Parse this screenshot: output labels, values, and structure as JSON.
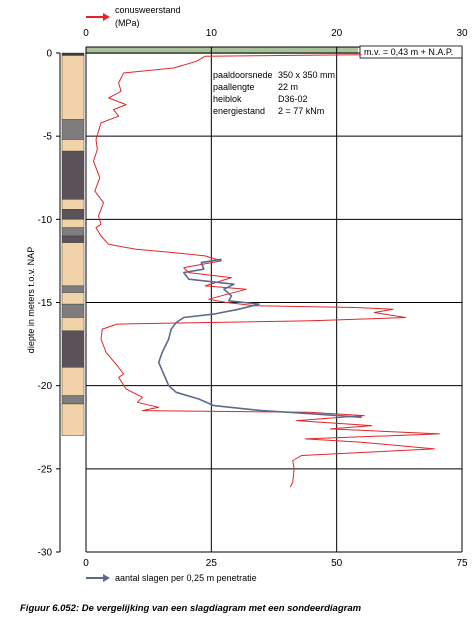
{
  "caption": "Figuur 6.052: De vergelijking van een slagdiagram met een sondeerdiagram",
  "chart_data": {
    "type": "line",
    "top_axis": {
      "label_line1": "conusweerstand",
      "label_line2": "(MPa)",
      "ticks": [
        0,
        10,
        20,
        30
      ],
      "range": [
        0,
        30
      ]
    },
    "bottom_axis": {
      "label": "aantal slagen per 0,25 m penetratie",
      "ticks": [
        0,
        25,
        50,
        75
      ],
      "range": [
        0,
        75
      ]
    },
    "y_axis": {
      "label": "diepte in meters t.o.v. NAP",
      "ticks": [
        0,
        -5,
        -10,
        -15,
        -20,
        -25,
        -30
      ],
      "range": [
        -30,
        0
      ]
    },
    "ground_level_label": "m.v. = 0,43 m + N.A.P.",
    "info_table": [
      {
        "key": "paaldoorsnede",
        "value": "350 x 350 mm"
      },
      {
        "key": "paallengte",
        "value": "22 m"
      },
      {
        "key": "heiblok",
        "value": "D36-02"
      },
      {
        "key": "energiestand",
        "value": "2 = 77 kNm"
      }
    ],
    "series": [
      {
        "axis": "top",
        "color": "#e0262b",
        "points": [
          [
            22,
            0.1
          ],
          [
            9.5,
            0.2
          ],
          [
            8.8,
            0.5
          ],
          [
            7,
            0.9
          ],
          [
            3,
            1.2
          ],
          [
            2.6,
            1.8
          ],
          [
            2.8,
            2.3
          ],
          [
            1.8,
            2.7
          ],
          [
            3.2,
            3.1
          ],
          [
            2.2,
            3.4
          ],
          [
            2.6,
            3.8
          ],
          [
            1.2,
            4.2
          ],
          [
            0.8,
            5.2
          ],
          [
            0.9,
            5.8
          ],
          [
            0.6,
            6.5
          ],
          [
            1.1,
            7.5
          ],
          [
            0.7,
            8.3
          ],
          [
            1.4,
            9
          ],
          [
            1,
            9.8
          ],
          [
            1.2,
            10.3
          ],
          [
            0.8,
            10.5
          ],
          [
            1.2,
            11
          ],
          [
            1.8,
            11.5
          ],
          [
            4,
            11.8
          ],
          [
            7,
            12
          ],
          [
            9.5,
            12.2
          ],
          [
            10.8,
            12.5
          ],
          [
            7.8,
            12.9
          ],
          [
            8.2,
            13.2
          ],
          [
            11.6,
            13.5
          ],
          [
            9.5,
            14
          ],
          [
            12.8,
            14.2
          ],
          [
            10.8,
            14.6
          ],
          [
            9.8,
            14.8
          ],
          [
            11.2,
            15
          ],
          [
            13.5,
            15.2
          ],
          [
            21.5,
            15.3
          ],
          [
            24.5,
            15.4
          ],
          [
            23,
            15.6
          ],
          [
            25.5,
            15.9
          ],
          [
            18,
            16.1
          ],
          [
            2.5,
            16.3
          ],
          [
            1.3,
            16.6
          ],
          [
            1.2,
            17.2
          ],
          [
            1.6,
            18
          ],
          [
            2.5,
            18.8
          ],
          [
            3,
            19.3
          ],
          [
            2.6,
            19.5
          ],
          [
            3.2,
            20.2
          ],
          [
            4.5,
            20.7
          ],
          [
            4.1,
            21
          ],
          [
            5.8,
            21.3
          ],
          [
            4.5,
            21.5
          ],
          [
            17.8,
            21.6
          ],
          [
            22.2,
            21.8
          ],
          [
            16.8,
            22.1
          ],
          [
            22.8,
            22.4
          ],
          [
            19.5,
            22.6
          ],
          [
            28.2,
            22.9
          ],
          [
            17.5,
            23.2
          ],
          [
            22,
            23.4
          ],
          [
            27.8,
            23.8
          ],
          [
            17.2,
            24.2
          ],
          [
            16.5,
            24.5
          ],
          [
            16.6,
            25
          ],
          [
            16.5,
            25.8
          ],
          [
            16.3,
            26.1
          ]
        ]
      },
      {
        "axis": "bottom",
        "color": "#5c6a8c",
        "points": [
          [
            27,
            12.4
          ],
          [
            23,
            12.6
          ],
          [
            23.5,
            13
          ],
          [
            19.5,
            13.2
          ],
          [
            20.5,
            13.6
          ],
          [
            29.5,
            13.9
          ],
          [
            27.5,
            14.2
          ],
          [
            29,
            14.6
          ],
          [
            28.5,
            14.9
          ],
          [
            34.5,
            15.1
          ],
          [
            30.5,
            15.4
          ],
          [
            25.5,
            15.7
          ],
          [
            19.5,
            15.9
          ],
          [
            18,
            16.2
          ],
          [
            17.5,
            16.4
          ],
          [
            17,
            16.6
          ],
          [
            16.5,
            17.2
          ],
          [
            15.2,
            18
          ],
          [
            14.5,
            18.6
          ],
          [
            15.8,
            19.5
          ],
          [
            16.5,
            20
          ],
          [
            18,
            20.4
          ],
          [
            22.5,
            20.8
          ],
          [
            25.5,
            21.2
          ],
          [
            35,
            21.5
          ],
          [
            45.5,
            21.7
          ],
          [
            55,
            21.9
          ]
        ]
      }
    ],
    "soil_column": [
      {
        "from": 0,
        "to": 0.15,
        "type": "fill"
      },
      {
        "from": 0.15,
        "to": 4.0,
        "type": "sand"
      },
      {
        "from": 4.0,
        "to": 5.2,
        "type": "silt"
      },
      {
        "from": 5.2,
        "to": 5.9,
        "type": "sand"
      },
      {
        "from": 5.9,
        "to": 8.8,
        "type": "clay"
      },
      {
        "from": 8.8,
        "to": 9.4,
        "type": "sand"
      },
      {
        "from": 9.4,
        "to": 10.0,
        "type": "clay"
      },
      {
        "from": 10.0,
        "to": 10.5,
        "type": "sand"
      },
      {
        "from": 10.5,
        "to": 11.0,
        "type": "silt"
      },
      {
        "from": 11.0,
        "to": 11.4,
        "type": "clay"
      },
      {
        "from": 11.4,
        "to": 14.0,
        "type": "sand"
      },
      {
        "from": 14.0,
        "to": 14.4,
        "type": "silt"
      },
      {
        "from": 14.4,
        "to": 15.1,
        "type": "sand"
      },
      {
        "from": 15.1,
        "to": 15.9,
        "type": "silt"
      },
      {
        "from": 15.9,
        "to": 16.7,
        "type": "sand"
      },
      {
        "from": 16.7,
        "to": 18.9,
        "type": "clay"
      },
      {
        "from": 18.9,
        "to": 20.6,
        "type": "sand"
      },
      {
        "from": 20.6,
        "to": 21.1,
        "type": "silt"
      },
      {
        "from": 21.1,
        "to": 23.0,
        "type": "sand"
      }
    ],
    "colors": {
      "sand": "#f2d2a8",
      "clay": "#5b5158",
      "silt": "#7e7c7c",
      "fill": "#3a3a3a",
      "top_band": "#a9c29c",
      "grid": "#000000"
    },
    "grid": true
  }
}
